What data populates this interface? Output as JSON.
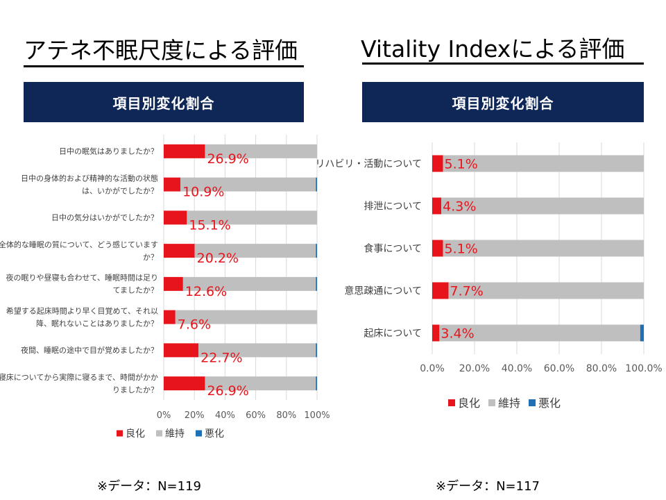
{
  "left_panel": {
    "title": "アテネ不眠尺度による評価",
    "banner": "項目別変化割合",
    "note": "※データ：N=119"
  },
  "right_panel": {
    "title": "Vitality  Indexによる評価",
    "banner": "項目別変化割合",
    "note": "※データ：N=117"
  },
  "colors": {
    "improve": "#e8141c",
    "maintain": "#bfbfbf",
    "worsen": "#1f6fb4",
    "label": "#e8141c",
    "grid": "#d9d9d9"
  },
  "chart_data": [
    {
      "type": "bar",
      "orientation": "horizontal",
      "stacked": true,
      "panel": "left",
      "categories": [
        [
          "日中の眠気はありましたか？"
        ],
        [
          "日中の身体的および精神的な活動の状態",
          "は、いかがでしたか？"
        ],
        [
          "日中の気分はいかがでしたか？"
        ],
        [
          "全体的な睡眠の質について、どう感じています",
          "か？"
        ],
        [
          "夜の眠りや昼寝も合わせて、睡眠時間は足り",
          "てましたか？"
        ],
        [
          "希望する起床時間より早く目覚めて、それ以",
          "降、眠れないことはありましたか？"
        ],
        [
          "夜間、睡眠の途中で目が覚めましたか？"
        ],
        [
          "寝床についてから実際に寝るまで、時間がかか",
          "りましたか？"
        ]
      ],
      "series": [
        {
          "name": "良化",
          "values": [
            26.9,
            10.9,
            15.1,
            20.2,
            12.6,
            7.6,
            22.7,
            26.9
          ]
        },
        {
          "name": "維持",
          "values": [
            73.1,
            88.3,
            84.9,
            79.0,
            86.6,
            92.4,
            76.5,
            72.3
          ]
        },
        {
          "name": "悪化",
          "values": [
            0.0,
            0.8,
            0.0,
            0.8,
            0.8,
            0.0,
            0.8,
            0.8
          ]
        }
      ],
      "data_labels": [
        "26.9%",
        "10.9%",
        "15.1%",
        "20.2%",
        "12.6%",
        "7.6%",
        "22.7%",
        "26.9%"
      ],
      "xlim": [
        0,
        100
      ],
      "ticks": [
        "0%",
        "20%",
        "40%",
        "60%",
        "80%",
        "100%"
      ],
      "legend": [
        "良化",
        "維持",
        "悪化"
      ],
      "legend_position": "bottom"
    },
    {
      "type": "bar",
      "orientation": "horizontal",
      "stacked": true,
      "panel": "right",
      "categories": [
        [
          "リハビリ・活動について"
        ],
        [
          "排泄について"
        ],
        [
          "食事について"
        ],
        [
          "意思疎通について"
        ],
        [
          "起床について"
        ]
      ],
      "series": [
        {
          "name": "良化",
          "values": [
            5.1,
            4.3,
            5.1,
            7.7,
            3.4
          ]
        },
        {
          "name": "維持",
          "values": [
            94.9,
            95.7,
            94.9,
            92.3,
            94.9
          ]
        },
        {
          "name": "悪化",
          "values": [
            0.0,
            0.0,
            0.0,
            0.0,
            1.7
          ]
        }
      ],
      "data_labels": [
        "5.1%",
        "4.3%",
        "5.1%",
        "7.7%",
        "3.4%"
      ],
      "xlim": [
        0,
        100
      ],
      "ticks": [
        "0.0%",
        "20.0%",
        "40.0%",
        "60.0%",
        "80.0%",
        "100.0%"
      ],
      "legend": [
        "良化",
        "維持",
        "悪化"
      ],
      "legend_position": "bottom"
    }
  ]
}
